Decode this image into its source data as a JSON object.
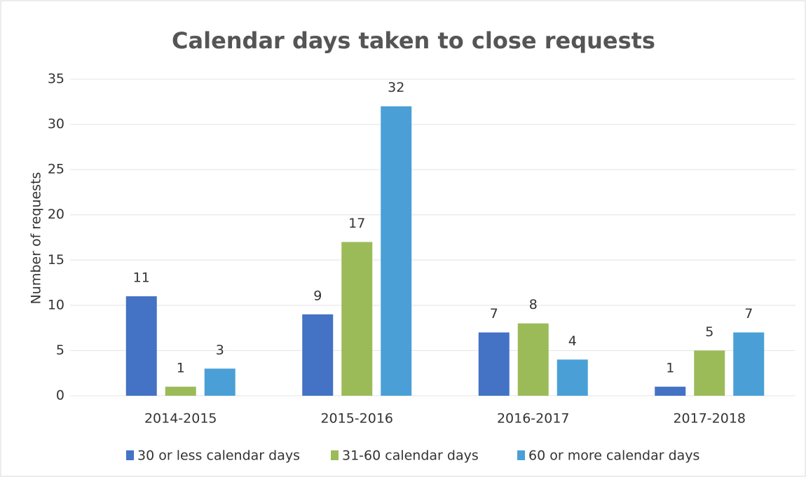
{
  "chart_data": {
    "type": "bar",
    "title": "Calendar days taken to close requests",
    "y_label": "Number of requests",
    "categories": [
      "2014-2015",
      "2015-2016",
      "2016-2017",
      "2017-2018"
    ],
    "series": [
      {
        "name": "30 or less calendar days",
        "color": "#4472c4",
        "values": [
          11,
          9,
          7,
          1
        ]
      },
      {
        "name": "31-60 calendar days",
        "color": "#9bbb59",
        "values": [
          1,
          17,
          8,
          5
        ]
      },
      {
        "name": "60 or more calendar days",
        "color": "#4aa0d6",
        "values": [
          3,
          32,
          4,
          7
        ]
      }
    ],
    "ylim": [
      0,
      35
    ],
    "yticks": [
      0,
      5,
      10,
      15,
      20,
      25,
      30,
      35
    ],
    "grid": true
  }
}
